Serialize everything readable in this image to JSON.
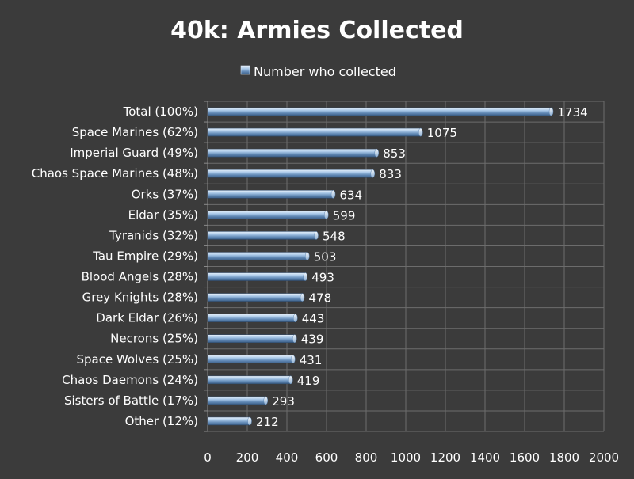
{
  "chart_data": {
    "type": "bar",
    "orientation": "horizontal",
    "title": "40k: Armies Collected",
    "legend_position": "top",
    "grid": true,
    "xlim": [
      0,
      2000
    ],
    "x_ticks": [
      "0",
      "200",
      "400",
      "600",
      "800",
      "1000",
      "1200",
      "1400",
      "1600",
      "1800",
      "2000"
    ],
    "categories": [
      "Total (100%)",
      "Space Marines (62%)",
      "Imperial Guard (49%)",
      "Chaos Space Marines (48%)",
      "Orks (37%)",
      "Eldar (35%)",
      "Tyranids (32%)",
      "Tau Empire (29%)",
      "Blood Angels (28%)",
      "Grey Knights (28%)",
      "Dark Eldar (26%)",
      "Necrons (25%)",
      "Space Wolves (25%)",
      "Chaos Daemons (24%)",
      "Sisters of Battle (17%)",
      "Other (12%)"
    ],
    "series": [
      {
        "name": "Number who collected",
        "color": "#8fb4da",
        "values": [
          1734,
          1075,
          853,
          833,
          634,
          599,
          548,
          503,
          493,
          478,
          443,
          439,
          431,
          419,
          293,
          212
        ]
      }
    ]
  }
}
